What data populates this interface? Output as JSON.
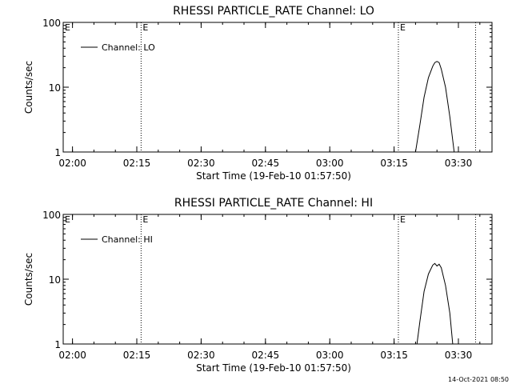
{
  "footer": "14-Oct-2021 08:50",
  "chart_data": [
    {
      "type": "line",
      "title": "RHESSI PARTICLE_RATE Channel: LO",
      "xlabel": "Start Time (19-Feb-10 01:57:50)",
      "ylabel": "Counts/sec",
      "yscale": "log",
      "xlim": [
        "01:57:50",
        "03:37:50"
      ],
      "ylim": [
        1,
        100
      ],
      "xticks": [
        "02:00",
        "02:15",
        "02:30",
        "02:45",
        "03:00",
        "03:15",
        "03:30"
      ],
      "yticks": [
        "1",
        "10",
        "100"
      ],
      "legend_position": "top-left",
      "grid": false,
      "markers": [
        {
          "time": "02:16:00",
          "label": "E"
        },
        {
          "time": "03:16:00",
          "label": "E"
        },
        {
          "time": "03:34:00",
          "label": ""
        }
      ],
      "edge_label": "E",
      "series": [
        {
          "name": "Channel: LO",
          "x": [
            "03:20:00",
            "03:21:00",
            "03:22:00",
            "03:23:00",
            "03:24:00",
            "03:24:30",
            "03:25:00",
            "03:25:30",
            "03:26:00",
            "03:27:00",
            "03:28:00",
            "03:29:00"
          ],
          "y": [
            1,
            2.6,
            7,
            14,
            21,
            24,
            25,
            24,
            19,
            10,
            3.5,
            1
          ]
        }
      ]
    },
    {
      "type": "line",
      "title": "RHESSI PARTICLE_RATE Channel: HI",
      "xlabel": "Start Time (19-Feb-10 01:57:50)",
      "ylabel": "Counts/sec",
      "yscale": "log",
      "xlim": [
        "01:57:50",
        "03:37:50"
      ],
      "ylim": [
        1,
        100
      ],
      "xticks": [
        "02:00",
        "02:15",
        "02:30",
        "02:45",
        "03:00",
        "03:15",
        "03:30"
      ],
      "yticks": [
        "1",
        "10",
        "100"
      ],
      "legend_position": "top-left",
      "grid": false,
      "markers": [
        {
          "time": "02:16:00",
          "label": "E"
        },
        {
          "time": "03:16:00",
          "label": "E"
        },
        {
          "time": "03:34:00",
          "label": ""
        }
      ],
      "edge_label": "E",
      "series": [
        {
          "name": "Channel: HI",
          "x": [
            "03:20:20",
            "03:21:00",
            "03:22:00",
            "03:23:00",
            "03:24:00",
            "03:24:30",
            "03:25:00",
            "03:25:30",
            "03:26:00",
            "03:27:00",
            "03:28:00",
            "03:28:40"
          ],
          "y": [
            1,
            2.2,
            6.5,
            12,
            16.5,
            17.5,
            16,
            17,
            15,
            8,
            3,
            1
          ]
        }
      ]
    }
  ]
}
